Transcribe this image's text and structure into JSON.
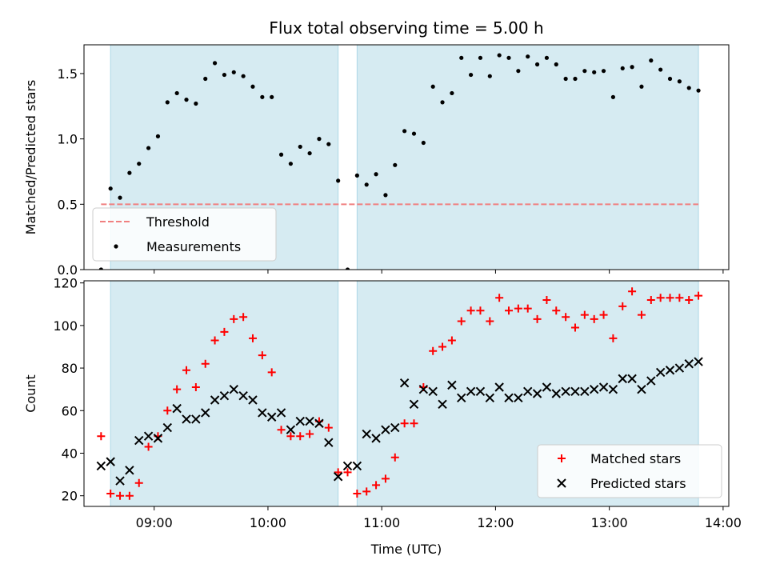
{
  "chart_data": [
    {
      "type": "scatter",
      "title": "Flux total observing time = 5.00 h",
      "xlabel": "",
      "ylabel": "Matched/Predicted stars",
      "ylim": [
        0,
        1.72
      ],
      "yticks": [
        0.0,
        0.5,
        1.0,
        1.5
      ],
      "ytick_labels": [
        "0.0",
        "0.5",
        "1.0",
        "1.5"
      ],
      "xlim": [
        "08:23",
        "14:03"
      ],
      "xticks": [
        "09:00",
        "10:00",
        "11:00",
        "12:00",
        "13:00",
        "14:00"
      ],
      "shaded_intervals": [
        [
          "08:37",
          "10:37"
        ],
        [
          "10:47",
          "13:47"
        ]
      ],
      "shade_color": "#add8e6",
      "threshold": {
        "label": "Threshold",
        "value": 0.5,
        "color": "#f08080",
        "x_range": [
          "08:32",
          "13:47"
        ]
      },
      "legend": {
        "position": "lower-left",
        "entries": [
          "Threshold",
          "Measurements"
        ]
      },
      "series": [
        {
          "name": "Measurements",
          "color": "#000000",
          "x": [
            "08:32",
            "08:37",
            "08:42",
            "08:47",
            "08:52",
            "08:57",
            "09:02",
            "09:07",
            "09:12",
            "09:17",
            "09:22",
            "09:27",
            "09:32",
            "09:37",
            "09:42",
            "09:47",
            "09:52",
            "09:57",
            "10:02",
            "10:07",
            "10:12",
            "10:17",
            "10:22",
            "10:27",
            "10:32",
            "10:37",
            "10:42",
            "10:47",
            "10:52",
            "10:57",
            "11:02",
            "11:07",
            "11:12",
            "11:17",
            "11:22",
            "11:27",
            "11:32",
            "11:37",
            "11:42",
            "11:47",
            "11:52",
            "11:57",
            "12:02",
            "12:07",
            "12:12",
            "12:17",
            "12:22",
            "12:27",
            "12:32",
            "12:37",
            "12:42",
            "12:47",
            "12:52",
            "12:57",
            "13:02",
            "13:07",
            "13:12",
            "13:17",
            "13:22",
            "13:27",
            "13:32",
            "13:37",
            "13:42",
            "13:47"
          ],
          "y": [
            0.0,
            0.62,
            0.55,
            0.74,
            0.81,
            0.93,
            1.02,
            1.28,
            1.35,
            1.3,
            1.27,
            1.46,
            1.58,
            1.49,
            1.51,
            1.48,
            1.4,
            1.32,
            1.32,
            0.88,
            0.81,
            0.94,
            0.89,
            1.0,
            0.96,
            0.68,
            0.0,
            0.72,
            0.65,
            0.73,
            0.57,
            0.8,
            1.06,
            1.04,
            0.97,
            1.4,
            1.28,
            1.35,
            1.62,
            1.49,
            1.62,
            1.48,
            1.64,
            1.62,
            1.52,
            1.63,
            1.57,
            1.62,
            1.57,
            1.46,
            1.46,
            1.52,
            1.51,
            1.52,
            1.32,
            1.54,
            1.55,
            1.4,
            1.6,
            1.53,
            1.46,
            1.44,
            1.39,
            1.37
          ]
        }
      ]
    },
    {
      "type": "scatter",
      "title": "",
      "xlabel": "Time (UTC)",
      "ylabel": "Count",
      "ylim": [
        15,
        121
      ],
      "yticks": [
        20,
        40,
        60,
        80,
        100,
        120
      ],
      "ytick_labels": [
        "20",
        "40",
        "60",
        "80",
        "100",
        "120"
      ],
      "xlim": [
        "08:23",
        "14:03"
      ],
      "xticks": [
        "09:00",
        "10:00",
        "11:00",
        "12:00",
        "13:00",
        "14:00"
      ],
      "xtick_labels": [
        "09:00",
        "10:00",
        "11:00",
        "12:00",
        "13:00",
        "14:00"
      ],
      "shaded_intervals": [
        [
          "08:37",
          "10:37"
        ],
        [
          "10:47",
          "13:47"
        ]
      ],
      "shade_color": "#add8e6",
      "legend": {
        "position": "lower-right",
        "entries": [
          "Matched stars",
          "Predicted stars"
        ]
      },
      "series": [
        {
          "name": "Matched stars",
          "color": "#ff0000",
          "marker": "plus",
          "x": [
            "08:32",
            "08:37",
            "08:42",
            "08:47",
            "08:52",
            "08:57",
            "09:02",
            "09:07",
            "09:12",
            "09:17",
            "09:22",
            "09:27",
            "09:32",
            "09:37",
            "09:42",
            "09:47",
            "09:52",
            "09:57",
            "10:02",
            "10:07",
            "10:12",
            "10:17",
            "10:22",
            "10:27",
            "10:32",
            "10:37",
            "10:42",
            "10:47",
            "10:52",
            "10:57",
            "11:02",
            "11:07",
            "11:12",
            "11:17",
            "11:22",
            "11:27",
            "11:32",
            "11:37",
            "11:42",
            "11:47",
            "11:52",
            "11:57",
            "12:02",
            "12:07",
            "12:12",
            "12:17",
            "12:22",
            "12:27",
            "12:32",
            "12:37",
            "12:42",
            "12:47",
            "12:52",
            "12:57",
            "13:02",
            "13:07",
            "13:12",
            "13:17",
            "13:22",
            "13:27",
            "13:32",
            "13:37",
            "13:42",
            "13:47"
          ],
          "y": [
            48,
            21,
            20,
            20,
            26,
            43,
            48,
            60,
            70,
            79,
            71,
            82,
            93,
            97,
            103,
            104,
            94,
            86,
            78,
            51,
            48,
            48,
            49,
            55,
            52,
            31,
            31,
            21,
            22,
            25,
            28,
            38,
            54,
            54,
            71,
            88,
            90,
            93,
            102,
            107,
            107,
            102,
            113,
            107,
            108,
            108,
            103,
            112,
            107,
            104,
            99,
            105,
            103,
            105,
            94,
            109,
            116,
            105,
            112,
            113,
            113,
            113,
            112,
            114
          ]
        },
        {
          "name": "Predicted stars",
          "color": "#000000",
          "marker": "x",
          "x": [
            "08:32",
            "08:37",
            "08:42",
            "08:47",
            "08:52",
            "08:57",
            "09:02",
            "09:07",
            "09:12",
            "09:17",
            "09:22",
            "09:27",
            "09:32",
            "09:37",
            "09:42",
            "09:47",
            "09:52",
            "09:57",
            "10:02",
            "10:07",
            "10:12",
            "10:17",
            "10:22",
            "10:27",
            "10:32",
            "10:37",
            "10:42",
            "10:47",
            "10:52",
            "10:57",
            "11:02",
            "11:07",
            "11:12",
            "11:17",
            "11:22",
            "11:27",
            "11:32",
            "11:37",
            "11:42",
            "11:47",
            "11:52",
            "11:57",
            "12:02",
            "12:07",
            "12:12",
            "12:17",
            "12:22",
            "12:27",
            "12:32",
            "12:37",
            "12:42",
            "12:47",
            "12:52",
            "12:57",
            "13:02",
            "13:07",
            "13:12",
            "13:17",
            "13:22",
            "13:27",
            "13:32",
            "13:37",
            "13:42",
            "13:47"
          ],
          "y": [
            34,
            36,
            27,
            32,
            46,
            48,
            47,
            52,
            61,
            56,
            56,
            59,
            65,
            67,
            70,
            67,
            65,
            59,
            57,
            59,
            51,
            55,
            55,
            54,
            45,
            29,
            34,
            34,
            49,
            47,
            51,
            52,
            73,
            63,
            70,
            69,
            63,
            72,
            66,
            69,
            69,
            66,
            71,
            66,
            66,
            69,
            68,
            71,
            68,
            69,
            69,
            69,
            70,
            71,
            70,
            75,
            75,
            70,
            74,
            78,
            79,
            80,
            82,
            83
          ]
        }
      ]
    }
  ]
}
